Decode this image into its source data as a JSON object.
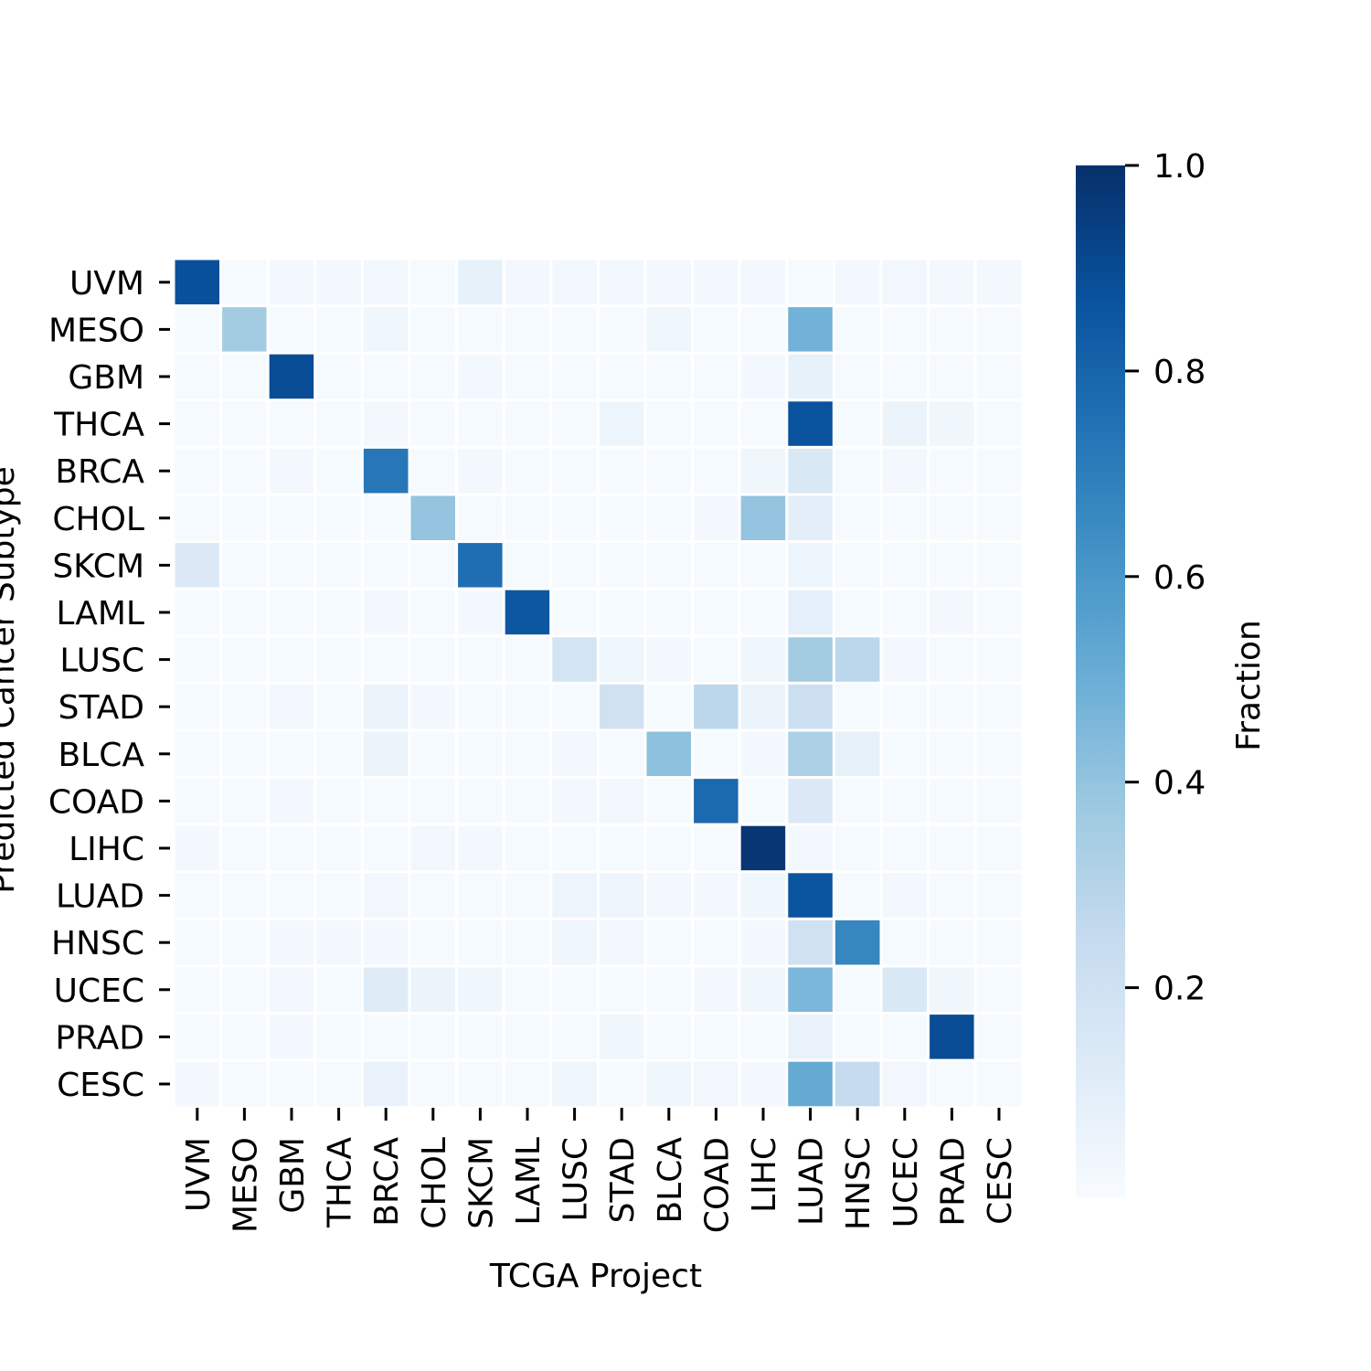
{
  "chart_data": {
    "type": "heatmap",
    "title": "",
    "xlabel": "TCGA Project",
    "ylabel": "Predicted Cancer Subtype",
    "x_categories": [
      "UVM",
      "MESO",
      "GBM",
      "THCA",
      "BRCA",
      "CHOL",
      "SKCM",
      "LAML",
      "LUSC",
      "STAD",
      "BLCA",
      "COAD",
      "LIHC",
      "LUAD",
      "HNSC",
      "UCEC",
      "PRAD",
      "CESC"
    ],
    "y_categories": [
      "UVM",
      "MESO",
      "GBM",
      "THCA",
      "BRCA",
      "CHOL",
      "SKCM",
      "LAML",
      "LUSC",
      "STAD",
      "BLCA",
      "COAD",
      "LIHC",
      "LUAD",
      "HNSC",
      "UCEC",
      "PRAD",
      "CESC"
    ],
    "values": [
      [
        0.88,
        0.01,
        0.02,
        0.02,
        0.03,
        0.01,
        0.08,
        0.02,
        0.03,
        0.03,
        0.02,
        0.02,
        0.02,
        0.01,
        0.02,
        0.03,
        0.02,
        0.02
      ],
      [
        0.01,
        0.36,
        0.01,
        0.01,
        0.04,
        0.01,
        0.01,
        0.01,
        0.01,
        0.01,
        0.04,
        0.01,
        0.01,
        0.48,
        0.01,
        0.01,
        0.01,
        0.01
      ],
      [
        0.01,
        0.01,
        0.89,
        0.01,
        0.01,
        0.01,
        0.02,
        0.01,
        0.01,
        0.01,
        0.01,
        0.01,
        0.02,
        0.08,
        0.01,
        0.01,
        0.01,
        0.01
      ],
      [
        0.01,
        0.01,
        0.01,
        0.01,
        0.02,
        0.01,
        0.01,
        0.01,
        0.01,
        0.05,
        0.01,
        0.01,
        0.01,
        0.87,
        0.01,
        0.06,
        0.04,
        0.01
      ],
      [
        0.01,
        0.01,
        0.02,
        0.01,
        0.73,
        0.01,
        0.02,
        0.01,
        0.01,
        0.01,
        0.01,
        0.01,
        0.04,
        0.15,
        0.01,
        0.02,
        0.01,
        0.01
      ],
      [
        0.01,
        0.01,
        0.01,
        0.01,
        0.01,
        0.4,
        0.01,
        0.01,
        0.01,
        0.01,
        0.01,
        0.02,
        0.4,
        0.1,
        0.01,
        0.01,
        0.01,
        0.01
      ],
      [
        0.14,
        0.01,
        0.01,
        0.01,
        0.01,
        0.01,
        0.76,
        0.01,
        0.01,
        0.01,
        0.01,
        0.01,
        0.01,
        0.05,
        0.01,
        0.01,
        0.01,
        0.01
      ],
      [
        0.01,
        0.01,
        0.01,
        0.01,
        0.02,
        0.01,
        0.02,
        0.85,
        0.01,
        0.01,
        0.01,
        0.01,
        0.01,
        0.09,
        0.01,
        0.01,
        0.02,
        0.01
      ],
      [
        0.01,
        0.01,
        0.01,
        0.01,
        0.01,
        0.01,
        0.01,
        0.01,
        0.18,
        0.04,
        0.02,
        0.01,
        0.04,
        0.36,
        0.28,
        0.02,
        0.01,
        0.01
      ],
      [
        0.01,
        0.01,
        0.03,
        0.01,
        0.06,
        0.02,
        0.01,
        0.01,
        0.01,
        0.2,
        0.01,
        0.28,
        0.06,
        0.22,
        0.01,
        0.01,
        0.01,
        0.01
      ],
      [
        0.01,
        0.01,
        0.01,
        0.01,
        0.06,
        0.01,
        0.01,
        0.01,
        0.02,
        0.01,
        0.42,
        0.01,
        0.02,
        0.33,
        0.08,
        0.01,
        0.01,
        0.01
      ],
      [
        0.01,
        0.01,
        0.02,
        0.01,
        0.01,
        0.01,
        0.01,
        0.01,
        0.02,
        0.03,
        0.01,
        0.78,
        0.01,
        0.14,
        0.01,
        0.01,
        0.01,
        0.01
      ],
      [
        0.02,
        0.01,
        0.01,
        0.01,
        0.01,
        0.03,
        0.02,
        0.01,
        0.01,
        0.01,
        0.01,
        0.01,
        0.98,
        0.02,
        0.01,
        0.01,
        0.01,
        0.01
      ],
      [
        0.01,
        0.01,
        0.01,
        0.01,
        0.03,
        0.01,
        0.01,
        0.01,
        0.05,
        0.05,
        0.02,
        0.02,
        0.04,
        0.86,
        0.01,
        0.02,
        0.01,
        0.01
      ],
      [
        0.01,
        0.01,
        0.02,
        0.02,
        0.02,
        0.01,
        0.01,
        0.01,
        0.04,
        0.03,
        0.01,
        0.01,
        0.02,
        0.2,
        0.67,
        0.01,
        0.01,
        0.01
      ],
      [
        0.01,
        0.01,
        0.03,
        0.01,
        0.12,
        0.06,
        0.04,
        0.01,
        0.01,
        0.01,
        0.01,
        0.02,
        0.04,
        0.46,
        0.01,
        0.15,
        0.04,
        0.01
      ],
      [
        0.01,
        0.01,
        0.02,
        0.01,
        0.01,
        0.01,
        0.01,
        0.01,
        0.01,
        0.04,
        0.01,
        0.01,
        0.01,
        0.07,
        0.01,
        0.01,
        0.89,
        0.01
      ],
      [
        0.02,
        0.01,
        0.01,
        0.01,
        0.07,
        0.01,
        0.01,
        0.01,
        0.04,
        0.01,
        0.04,
        0.03,
        0.02,
        0.52,
        0.25,
        0.03,
        0.01,
        0.01
      ]
    ],
    "colormap": "Blues",
    "vmin": 0.0,
    "vmax": 1.0,
    "colorbar": {
      "label": "Fraction",
      "ticks": [
        0.2,
        0.4,
        0.6,
        0.8,
        1.0
      ],
      "tick_labels": [
        "0.2",
        "0.4",
        "0.6",
        "0.8",
        "1.0"
      ],
      "placement": "right"
    },
    "grid": false
  }
}
